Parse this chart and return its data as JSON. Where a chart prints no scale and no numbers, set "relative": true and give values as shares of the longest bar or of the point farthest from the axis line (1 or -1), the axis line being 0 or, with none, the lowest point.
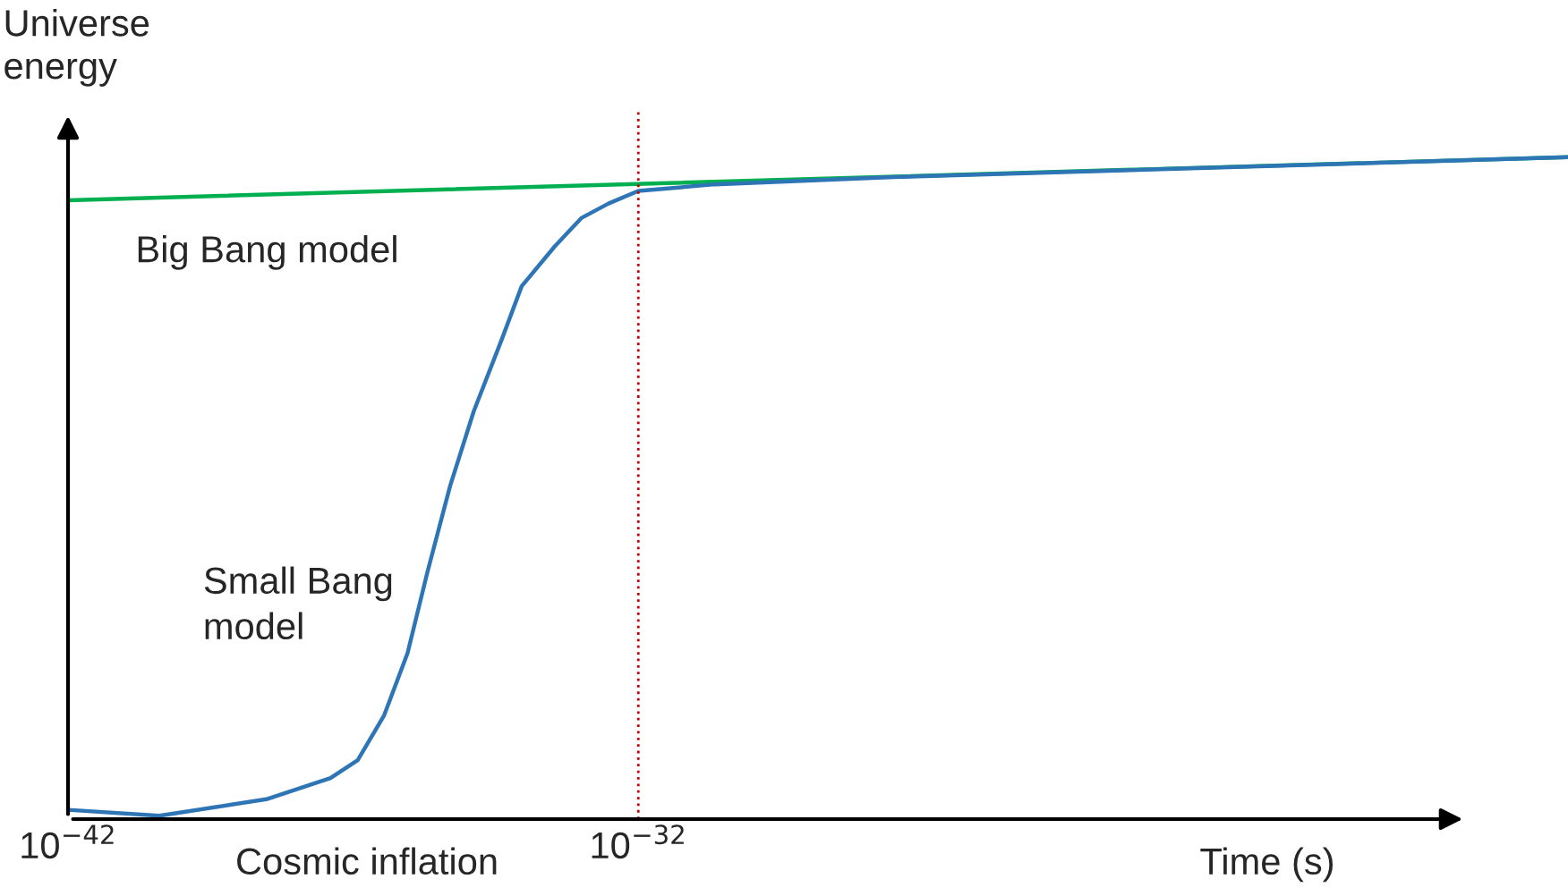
{
  "chart_data": {
    "type": "line",
    "relative": true,
    "log": "x",
    "ylabel": "Universe energy",
    "xlabel": "Time (s)",
    "xlim": [
      1e-42,
      2e-16
    ],
    "xticks": [
      {
        "value": 1e-42,
        "label": "10$^{−42}$"
      },
      {
        "value": 1e-32,
        "label": "10$^{−32}$"
      }
    ],
    "grid": false,
    "legend": false,
    "marker": "none",
    "line_style": "solid",
    "series": [
      {
        "name": "Big Bang model",
        "color": "#00b050",
        "x": [
          1e-42,
          2e-16
        ],
        "values": [
          0.935,
          1.0
        ]
      },
      {
        "name": "Small Bang model",
        "color": "#2e75b6",
        "x": [
          1e-42,
          4e-41,
          3e-39,
          4e-38,
          1.2e-37,
          3.5e-37,
          9e-37,
          2e-36,
          5e-36,
          1.3e-35,
          4e-35,
          9e-35,
          3.4e-34,
          1e-33,
          3e-33,
          1e-32,
          2.2e-31,
          3e-28,
          2e-16
        ],
        "values": [
          0.014,
          0.005,
          0.03,
          0.062,
          0.089,
          0.157,
          0.251,
          0.373,
          0.503,
          0.616,
          0.724,
          0.805,
          0.865,
          0.908,
          0.93,
          0.949,
          0.959,
          0.97,
          1.0
        ]
      }
    ],
    "ref_lines": [
      {
        "axis": "x",
        "value": 1e-32,
        "color": "#c00000",
        "line_style": "dotted"
      }
    ],
    "annotations": [
      "Cosmic inflation"
    ]
  }
}
